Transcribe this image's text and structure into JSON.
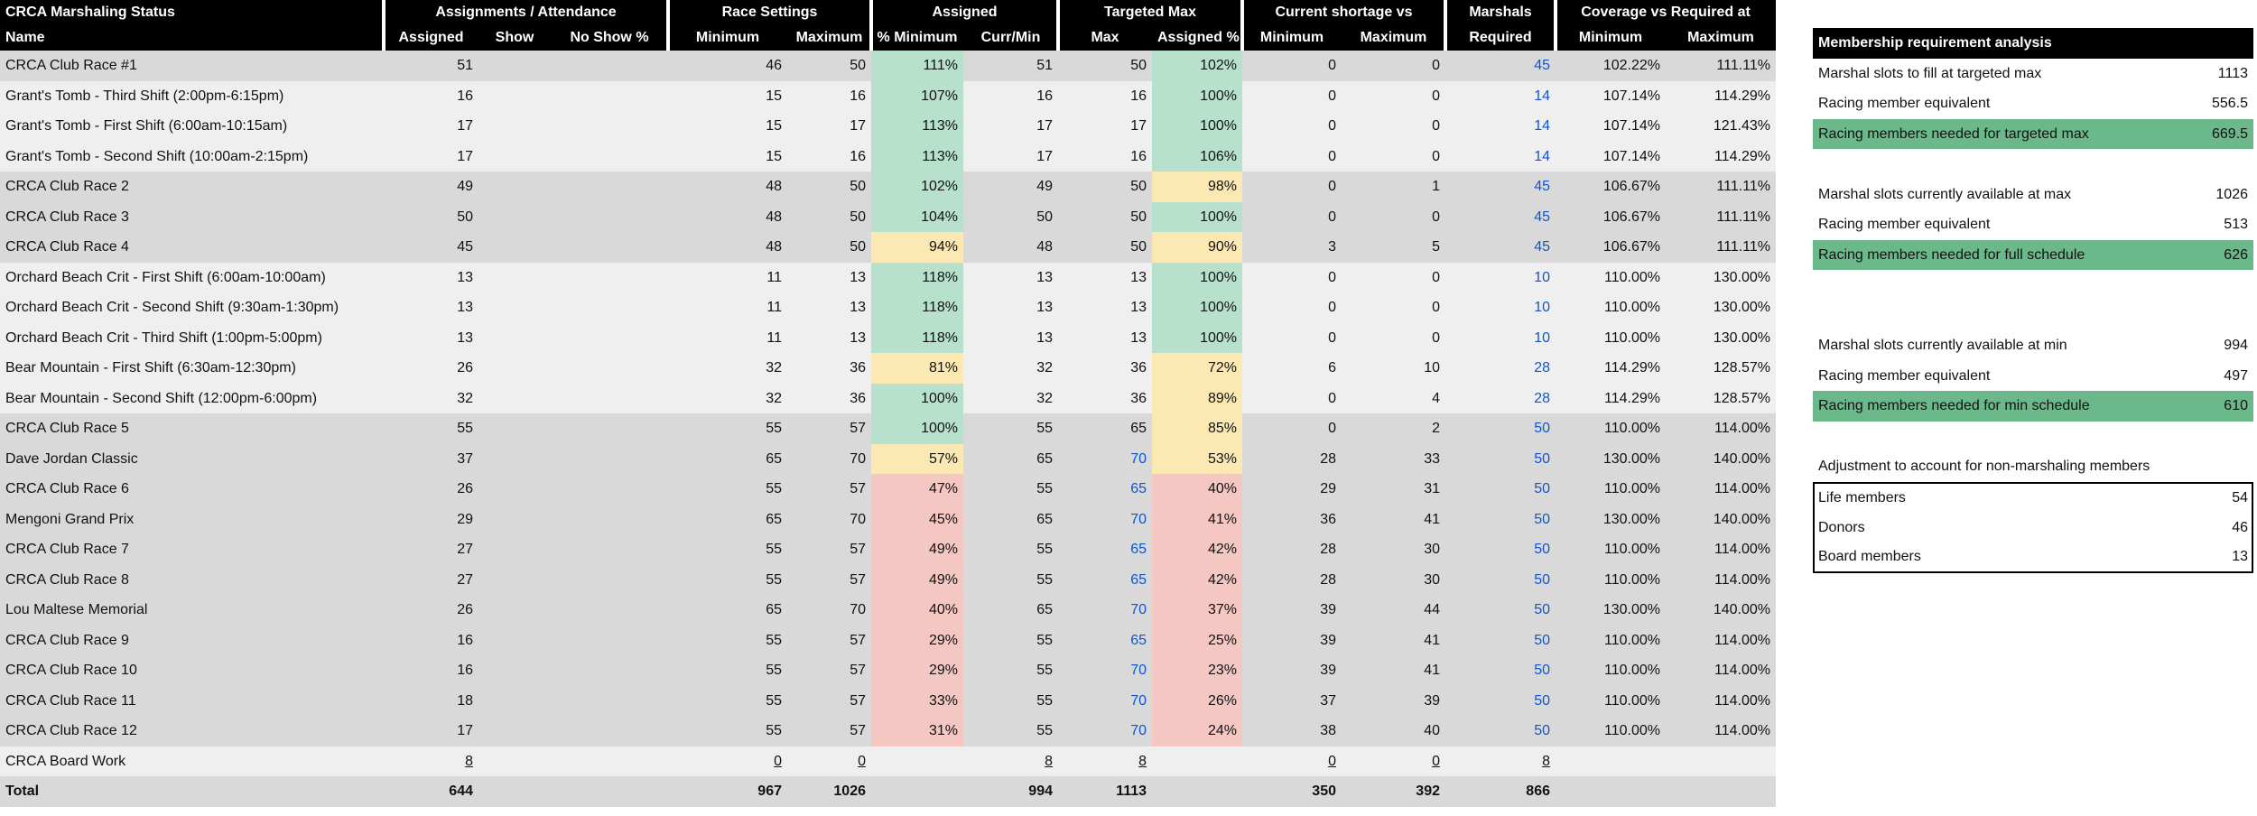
{
  "headers": {
    "row1": {
      "title": "CRCA Marshaling Status",
      "assignments": "Assignments / Attendance",
      "race_settings": "Race Settings",
      "assigned": "Assigned",
      "targeted_max": "Targeted Max",
      "shortage": "Current shortage vs",
      "marshals": "Marshals",
      "coverage": "Coverage vs Required at"
    },
    "row2": {
      "name": "Name",
      "assigned": "Assigned",
      "show": "Show",
      "noshow": "No Show %",
      "minimum": "Minimum",
      "maximum": "Maximum",
      "pct_min": "% Minimum",
      "curr_min": "Curr/Min",
      "max": "Max",
      "assigned_pct": "Assigned %",
      "short_min": "Minimum",
      "short_max": "Maximum",
      "required": "Required",
      "cov_min": "Minimum",
      "cov_max": "Maximum"
    }
  },
  "rows": [
    {
      "name": "CRCA Club Race #1",
      "assigned": "51",
      "min": "46",
      "max": "50",
      "pct_min": "111%",
      "curr": "51",
      "tmax": "50",
      "apct": "102%",
      "smin": "0",
      "smax": "0",
      "req": "45",
      "cmin": "102.22%",
      "cmax": "111.11%",
      "bg": "g1",
      "c1": "green",
      "c2": "green",
      "tblue": false
    },
    {
      "name": "Grant's Tomb - Third Shift (2:00pm-6:15pm)",
      "assigned": "16",
      "min": "15",
      "max": "16",
      "pct_min": "107%",
      "curr": "16",
      "tmax": "16",
      "apct": "100%",
      "smin": "0",
      "smax": "0",
      "req": "14",
      "cmin": "107.14%",
      "cmax": "114.29%",
      "bg": "g2",
      "c1": "green",
      "c2": "green",
      "tblue": false
    },
    {
      "name": "Grant's Tomb - First Shift (6:00am-10:15am)",
      "assigned": "17",
      "min": "15",
      "max": "17",
      "pct_min": "113%",
      "curr": "17",
      "tmax": "17",
      "apct": "100%",
      "smin": "0",
      "smax": "0",
      "req": "14",
      "cmin": "107.14%",
      "cmax": "121.43%",
      "bg": "g2",
      "c1": "green",
      "c2": "green",
      "tblue": false
    },
    {
      "name": "Grant's Tomb - Second Shift (10:00am-2:15pm)",
      "assigned": "17",
      "min": "15",
      "max": "16",
      "pct_min": "113%",
      "curr": "17",
      "tmax": "16",
      "apct": "106%",
      "smin": "0",
      "smax": "0",
      "req": "14",
      "cmin": "107.14%",
      "cmax": "114.29%",
      "bg": "g2",
      "c1": "green",
      "c2": "green",
      "tblue": false
    },
    {
      "name": "CRCA Club Race 2",
      "assigned": "49",
      "min": "48",
      "max": "50",
      "pct_min": "102%",
      "curr": "49",
      "tmax": "50",
      "apct": "98%",
      "smin": "0",
      "smax": "1",
      "req": "45",
      "cmin": "106.67%",
      "cmax": "111.11%",
      "bg": "g1",
      "c1": "green",
      "c2": "yellow",
      "tblue": false
    },
    {
      "name": "CRCA Club Race 3",
      "assigned": "50",
      "min": "48",
      "max": "50",
      "pct_min": "104%",
      "curr": "50",
      "tmax": "50",
      "apct": "100%",
      "smin": "0",
      "smax": "0",
      "req": "45",
      "cmin": "106.67%",
      "cmax": "111.11%",
      "bg": "g1",
      "c1": "green",
      "c2": "green",
      "tblue": false
    },
    {
      "name": "CRCA Club Race 4",
      "assigned": "45",
      "min": "48",
      "max": "50",
      "pct_min": "94%",
      "curr": "48",
      "tmax": "50",
      "apct": "90%",
      "smin": "3",
      "smax": "5",
      "req": "45",
      "cmin": "106.67%",
      "cmax": "111.11%",
      "bg": "g1",
      "c1": "yellow",
      "c2": "yellow",
      "tblue": false
    },
    {
      "name": "Orchard Beach Crit - First Shift (6:00am-10:00am)",
      "assigned": "13",
      "min": "11",
      "max": "13",
      "pct_min": "118%",
      "curr": "13",
      "tmax": "13",
      "apct": "100%",
      "smin": "0",
      "smax": "0",
      "req": "10",
      "cmin": "110.00%",
      "cmax": "130.00%",
      "bg": "g2",
      "c1": "green",
      "c2": "green",
      "tblue": false
    },
    {
      "name": "Orchard Beach Crit - Second Shift (9:30am-1:30pm)",
      "assigned": "13",
      "min": "11",
      "max": "13",
      "pct_min": "118%",
      "curr": "13",
      "tmax": "13",
      "apct": "100%",
      "smin": "0",
      "smax": "0",
      "req": "10",
      "cmin": "110.00%",
      "cmax": "130.00%",
      "bg": "g2",
      "c1": "green",
      "c2": "green",
      "tblue": false
    },
    {
      "name": "Orchard Beach Crit - Third Shift (1:00pm-5:00pm)",
      "assigned": "13",
      "min": "11",
      "max": "13",
      "pct_min": "118%",
      "curr": "13",
      "tmax": "13",
      "apct": "100%",
      "smin": "0",
      "smax": "0",
      "req": "10",
      "cmin": "110.00%",
      "cmax": "130.00%",
      "bg": "g2",
      "c1": "green",
      "c2": "green",
      "tblue": false
    },
    {
      "name": "Bear Mountain - First Shift (6:30am-12:30pm)",
      "assigned": "26",
      "min": "32",
      "max": "36",
      "pct_min": "81%",
      "curr": "32",
      "tmax": "36",
      "apct": "72%",
      "smin": "6",
      "smax": "10",
      "req": "28",
      "cmin": "114.29%",
      "cmax": "128.57%",
      "bg": "g2",
      "c1": "yellow",
      "c2": "yellow",
      "tblue": false
    },
    {
      "name": "Bear Mountain - Second Shift (12:00pm-6:00pm)",
      "assigned": "32",
      "min": "32",
      "max": "36",
      "pct_min": "100%",
      "curr": "32",
      "tmax": "36",
      "apct": "89%",
      "smin": "0",
      "smax": "4",
      "req": "28",
      "cmin": "114.29%",
      "cmax": "128.57%",
      "bg": "g2",
      "c1": "green",
      "c2": "yellow",
      "tblue": false
    },
    {
      "name": "CRCA Club Race 5",
      "assigned": "55",
      "min": "55",
      "max": "57",
      "pct_min": "100%",
      "curr": "55",
      "tmax": "65",
      "apct": "85%",
      "smin": "0",
      "smax": "2",
      "req": "50",
      "cmin": "110.00%",
      "cmax": "114.00%",
      "bg": "g1",
      "c1": "green",
      "c2": "yellow",
      "tblue": false
    },
    {
      "name": "Dave Jordan Classic",
      "assigned": "37",
      "min": "65",
      "max": "70",
      "pct_min": "57%",
      "curr": "65",
      "tmax": "70",
      "apct": "53%",
      "smin": "28",
      "smax": "33",
      "req": "50",
      "cmin": "130.00%",
      "cmax": "140.00%",
      "bg": "g1",
      "c1": "yellow",
      "c2": "yellow",
      "tblue": true
    },
    {
      "name": "CRCA Club Race 6",
      "assigned": "26",
      "min": "55",
      "max": "57",
      "pct_min": "47%",
      "curr": "55",
      "tmax": "65",
      "apct": "40%",
      "smin": "29",
      "smax": "31",
      "req": "50",
      "cmin": "110.00%",
      "cmax": "114.00%",
      "bg": "g1",
      "c1": "red",
      "c2": "red",
      "tblue": true
    },
    {
      "name": "Mengoni Grand Prix",
      "assigned": "29",
      "min": "65",
      "max": "70",
      "pct_min": "45%",
      "curr": "65",
      "tmax": "70",
      "apct": "41%",
      "smin": "36",
      "smax": "41",
      "req": "50",
      "cmin": "130.00%",
      "cmax": "140.00%",
      "bg": "g1",
      "c1": "red",
      "c2": "red",
      "tblue": true
    },
    {
      "name": "CRCA Club Race 7",
      "assigned": "27",
      "min": "55",
      "max": "57",
      "pct_min": "49%",
      "curr": "55",
      "tmax": "65",
      "apct": "42%",
      "smin": "28",
      "smax": "30",
      "req": "50",
      "cmin": "110.00%",
      "cmax": "114.00%",
      "bg": "g1",
      "c1": "red",
      "c2": "red",
      "tblue": true
    },
    {
      "name": "CRCA Club Race 8",
      "assigned": "27",
      "min": "55",
      "max": "57",
      "pct_min": "49%",
      "curr": "55",
      "tmax": "65",
      "apct": "42%",
      "smin": "28",
      "smax": "30",
      "req": "50",
      "cmin": "110.00%",
      "cmax": "114.00%",
      "bg": "g1",
      "c1": "red",
      "c2": "red",
      "tblue": true
    },
    {
      "name": "Lou Maltese Memorial",
      "assigned": "26",
      "min": "65",
      "max": "70",
      "pct_min": "40%",
      "curr": "65",
      "tmax": "70",
      "apct": "37%",
      "smin": "39",
      "smax": "44",
      "req": "50",
      "cmin": "130.00%",
      "cmax": "140.00%",
      "bg": "g1",
      "c1": "red",
      "c2": "red",
      "tblue": true
    },
    {
      "name": "CRCA Club Race 9",
      "assigned": "16",
      "min": "55",
      "max": "57",
      "pct_min": "29%",
      "curr": "55",
      "tmax": "65",
      "apct": "25%",
      "smin": "39",
      "smax": "41",
      "req": "50",
      "cmin": "110.00%",
      "cmax": "114.00%",
      "bg": "g1",
      "c1": "red",
      "c2": "red",
      "tblue": true
    },
    {
      "name": "CRCA Club Race 10",
      "assigned": "16",
      "min": "55",
      "max": "57",
      "pct_min": "29%",
      "curr": "55",
      "tmax": "70",
      "apct": "23%",
      "smin": "39",
      "smax": "41",
      "req": "50",
      "cmin": "110.00%",
      "cmax": "114.00%",
      "bg": "g1",
      "c1": "red",
      "c2": "red",
      "tblue": true
    },
    {
      "name": "CRCA Club Race 11",
      "assigned": "18",
      "min": "55",
      "max": "57",
      "pct_min": "33%",
      "curr": "55",
      "tmax": "70",
      "apct": "26%",
      "smin": "37",
      "smax": "39",
      "req": "50",
      "cmin": "110.00%",
      "cmax": "114.00%",
      "bg": "g1",
      "c1": "red",
      "c2": "red",
      "tblue": true
    },
    {
      "name": "CRCA Club Race 12",
      "assigned": "17",
      "min": "55",
      "max": "57",
      "pct_min": "31%",
      "curr": "55",
      "tmax": "70",
      "apct": "24%",
      "smin": "38",
      "smax": "40",
      "req": "50",
      "cmin": "110.00%",
      "cmax": "114.00%",
      "bg": "g1",
      "c1": "red",
      "c2": "red",
      "tblue": true
    },
    {
      "name": "CRCA Board Work",
      "assigned": "8",
      "min": "0",
      "max": "0",
      "pct_min": "",
      "curr": "8",
      "tmax": "8",
      "apct": "",
      "smin": "0",
      "smax": "0",
      "req": "8",
      "cmin": "",
      "cmax": "",
      "bg": "g2",
      "c1": "",
      "c2": "",
      "tblue": false,
      "underline": true
    }
  ],
  "total": {
    "name": "Total",
    "assigned": "644",
    "min": "967",
    "max": "1026",
    "curr": "994",
    "tmax": "1113",
    "smin": "350",
    "smax": "392",
    "req": "866"
  },
  "panel": {
    "title": "Membership requirement analysis",
    "group1": [
      {
        "label": "Marshal slots to fill at targeted max",
        "value": "1113"
      },
      {
        "label": "Racing member equivalent",
        "value": "556.5"
      },
      {
        "label": "Racing members needed for targeted max",
        "value": "669.5"
      }
    ],
    "group2": [
      {
        "label": "Marshal slots currently available at max",
        "value": "1026"
      },
      {
        "label": "Racing member equivalent",
        "value": "513"
      },
      {
        "label": "Racing members needed for full schedule",
        "value": "626"
      }
    ],
    "group3": [
      {
        "label": "Marshal slots currently available at min",
        "value": "994"
      },
      {
        "label": "Racing member equivalent",
        "value": "497"
      },
      {
        "label": "Racing members needed for min schedule",
        "value": "610"
      }
    ],
    "adjust_title": "Adjustment to account for non-marshaling members",
    "adjust": [
      {
        "label": "Life members",
        "value": "54"
      },
      {
        "label": "Donors",
        "value": "46"
      },
      {
        "label": "Board members",
        "value": "13"
      }
    ]
  },
  "colors": {
    "green": "#b7e1cd",
    "yellow": "#fce8b2",
    "red": "#f4c7c3",
    "blue_text": "#1155cc",
    "panel_green": "#6bb88a",
    "header": "#000000"
  }
}
